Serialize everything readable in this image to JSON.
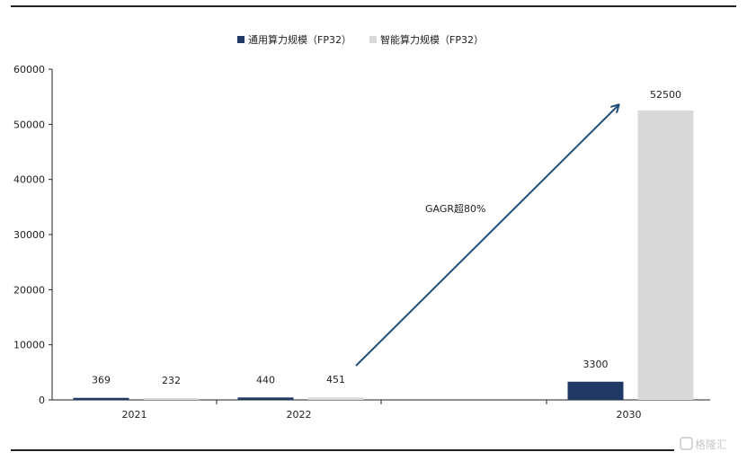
{
  "chart_data": {
    "type": "bar",
    "categories": [
      "2021",
      "2022",
      "2030"
    ],
    "series": [
      {
        "name": "通用算力规模（FP32）",
        "values": [
          369,
          440,
          3300
        ],
        "color": "#1f3864"
      },
      {
        "name": "智能算力规模（FP32）",
        "values": [
          232,
          451,
          52500
        ],
        "color": "#d9d9d9"
      }
    ],
    "title": "",
    "xlabel": "",
    "ylabel": "",
    "ylim": [
      0,
      60000
    ],
    "yticks": [
      0,
      10000,
      20000,
      30000,
      40000,
      50000,
      60000
    ],
    "grid": false,
    "legend_position": "top-center",
    "annotation": {
      "text": "GAGR超80%",
      "arrow_color": "#1f4e79"
    }
  },
  "watermark": {
    "text": "格隆汇",
    "icon": "logo-icon"
  }
}
